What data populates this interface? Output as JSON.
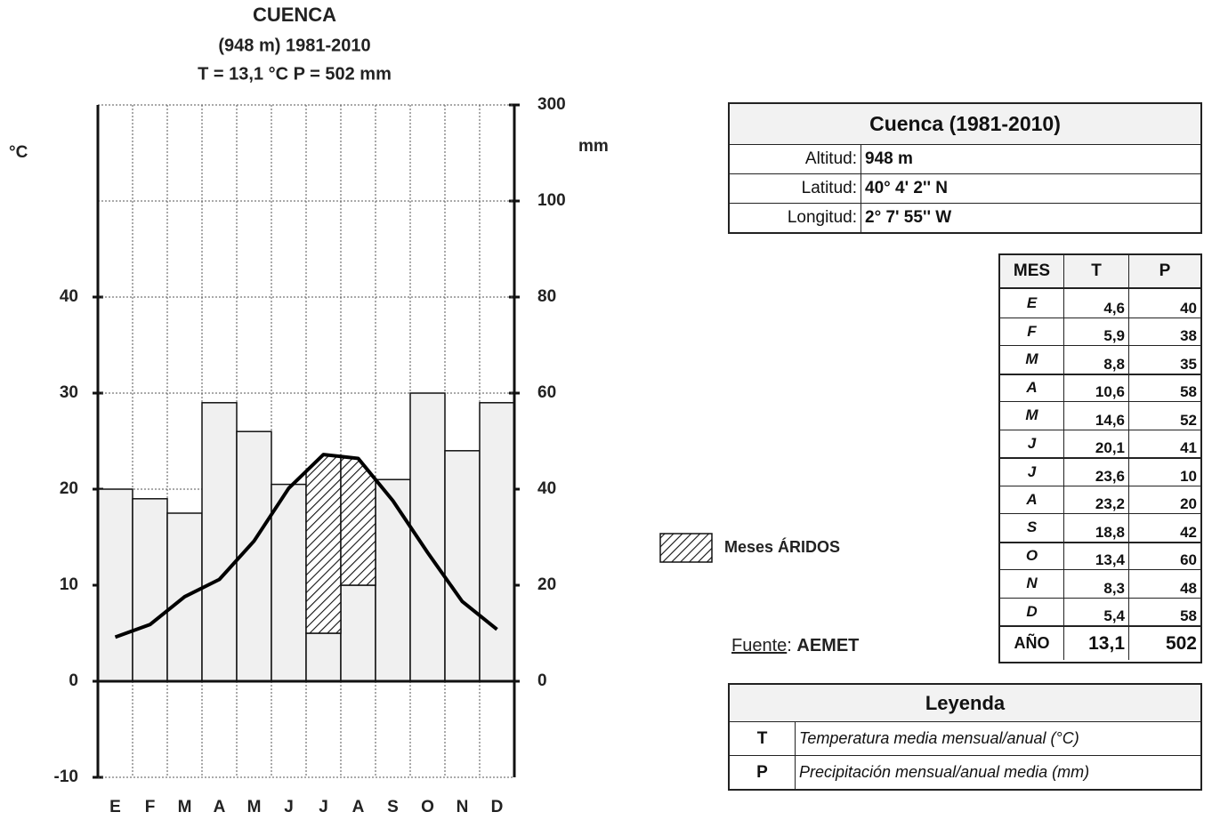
{
  "chart_data": {
    "type": "climograph",
    "title": "CUENCA",
    "subtitle": "(948 m) 1981-2010",
    "summary": "T = 13,1 °C  P = 502 mm",
    "ylabel": "°C",
    "y2label": "mm",
    "categories": [
      "E",
      "F",
      "M",
      "A",
      "M",
      "J",
      "J",
      "A",
      "S",
      "O",
      "N",
      "D"
    ],
    "series": [
      {
        "type": "bar",
        "axis": "y2",
        "color": "#f0f0f0",
        "values": [
          40,
          38,
          35,
          58,
          52,
          41,
          10,
          20,
          42,
          60,
          48,
          58
        ]
      },
      {
        "type": "line",
        "color": "#000000",
        "values": [
          4.6,
          5.9,
          8.8,
          10.6,
          14.6,
          20.1,
          23.6,
          23.2,
          18.8,
          13.4,
          8.3,
          5.4
        ]
      }
    ],
    "ylim": [
      -10,
      60
    ],
    "yticks": [
      -10,
      0,
      10,
      20,
      30,
      40
    ],
    "y2lim": [
      -20,
      300
    ],
    "y2ticks": [
      0,
      20,
      40,
      60,
      80,
      100,
      300
    ],
    "grid": true,
    "arid_label": "Meses ÁRIDOS"
  },
  "station": {
    "title": "Cuenca (1981-2010)",
    "rows": [
      [
        "Altitud:",
        "948 m"
      ],
      [
        "Latitud:",
        "40° 4' 2'' N"
      ],
      [
        "Longitud:",
        "2° 7' 55'' W"
      ]
    ]
  },
  "climate_table": {
    "header": [
      "MES",
      "T",
      "P"
    ],
    "rows": [
      [
        "E",
        "4,6",
        "40"
      ],
      [
        "F",
        "5,9",
        "38"
      ],
      [
        "M",
        "8,8",
        "35"
      ],
      [
        "A",
        "10,6",
        "58"
      ],
      [
        "M",
        "14,6",
        "52"
      ],
      [
        "J",
        "20,1",
        "41"
      ],
      [
        "J",
        "23,6",
        "10"
      ],
      [
        "A",
        "23,2",
        "20"
      ],
      [
        "S",
        "18,8",
        "42"
      ],
      [
        "O",
        "13,4",
        "60"
      ],
      [
        "N",
        "8,3",
        "48"
      ],
      [
        "D",
        "5,4",
        "58"
      ]
    ],
    "footer": [
      "AÑO",
      "13,1",
      "502"
    ]
  },
  "source": {
    "label": "Fuente",
    "separator": ":",
    "value": "AEMET"
  },
  "legend_table": {
    "title": "Leyenda",
    "rows": [
      [
        "T",
        "Temperatura media mensual/anual (°C)"
      ],
      [
        "P",
        "Precipitación mensual/anual media (mm)"
      ]
    ]
  }
}
